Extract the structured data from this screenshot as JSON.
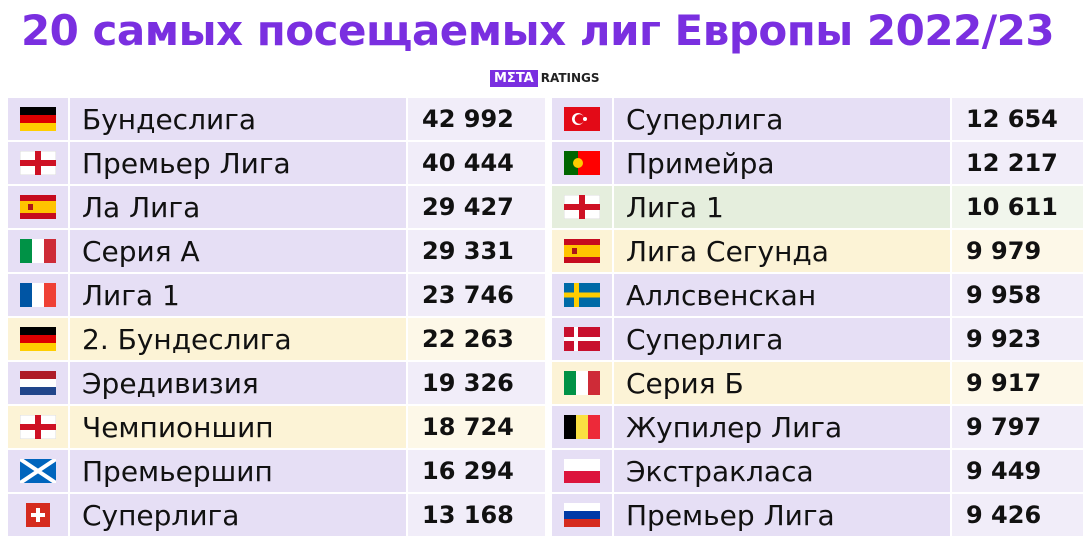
{
  "header": {
    "title": "20 самых посещаемых лиг Европы 2022/23",
    "logo_mark": "MΣTA",
    "logo_text": "RATINGS"
  },
  "table": {
    "columns": [
      {
        "rows": [
          {
            "league": "Бундеслига",
            "attendance": "42 992",
            "color": "#e6dff5"
          },
          {
            "league": "Премьер Лига",
            "attendance": "40 444",
            "color": "#e6dff5"
          },
          {
            "league": "Ла Лига",
            "attendance": "29 427",
            "color": "#e6dff5"
          },
          {
            "league": "Серия А",
            "attendance": "29 331",
            "color": "#e6dff5"
          },
          {
            "league": "Лига 1",
            "attendance": "23 746",
            "color": "#e6dff5"
          },
          {
            "league": "2. Бундеслига",
            "attendance": "22 263",
            "color": "#fcf3d6"
          },
          {
            "league": "Эредивизия",
            "attendance": "19 326",
            "color": "#e6dff5"
          },
          {
            "league": "Чемпионшип",
            "attendance": "18 724",
            "color": "#fcf3d6"
          },
          {
            "league": "Премьершип",
            "attendance": "16 294",
            "color": "#e6dff5"
          },
          {
            "league": "Суперлига",
            "attendance": "13 168",
            "color": "#e6dff5"
          }
        ]
      },
      {
        "rows": [
          {
            "league": "Суперлига",
            "attendance": "12 654",
            "color": "#e6dff5"
          },
          {
            "league": "Примейра",
            "attendance": "12 217",
            "color": "#e6dff5"
          },
          {
            "league": "Лига 1",
            "attendance": "10 611",
            "color": "#e5eedd"
          },
          {
            "league": "Лига Сегунда",
            "attendance": "9 979",
            "color": "#fcf3d6"
          },
          {
            "league": "Аллсвенскан",
            "attendance": "9 958",
            "color": "#e6dff5"
          },
          {
            "league": "Суперлига",
            "attendance": "9 923",
            "color": "#e6dff5"
          },
          {
            "league": "Серия Б",
            "attendance": "9 917",
            "color": "#fcf3d6"
          },
          {
            "league": "Жупилер Лига",
            "attendance": "9 797",
            "color": "#e6dff5"
          },
          {
            "league": "Экстракласа",
            "attendance": "9 449",
            "color": "#e6dff5"
          },
          {
            "league": "Премьер Лига",
            "attendance": "9 426",
            "color": "#e6dff5"
          }
        ]
      }
    ]
  }
}
